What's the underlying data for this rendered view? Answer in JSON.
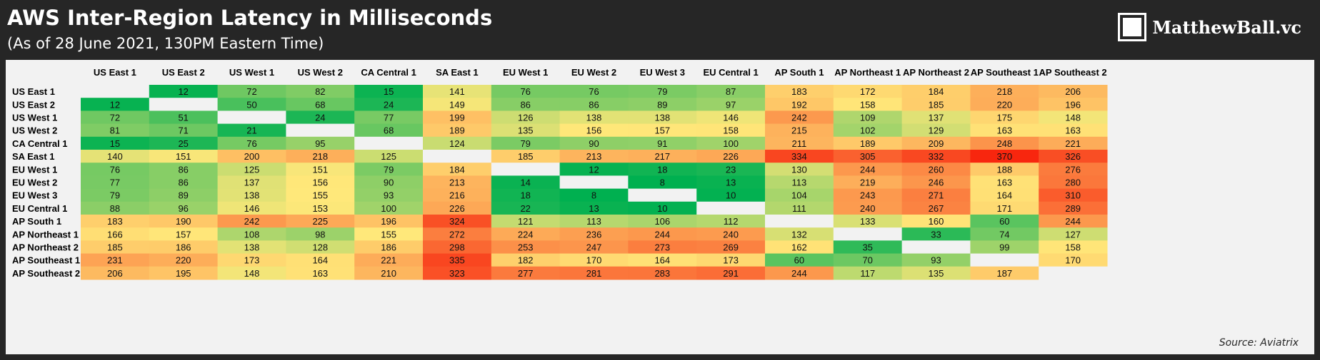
{
  "header": {
    "title": "AWS Inter-Region Latency in Milliseconds",
    "subtitle": "(As of 28 June 2021, 130PM Eastern Time)",
    "brand": "MatthewBall.vc",
    "brand_logo_icon": "square-frame-logo"
  },
  "footer": {
    "source": "Source: Aviatrix"
  },
  "chart_data": {
    "type": "heatmap",
    "title": "AWS Inter-Region Latency in Milliseconds",
    "columns": [
      "US East 1",
      "US East 2",
      "US West 1",
      "US West 2",
      "CA Central 1",
      "SA East 1",
      "EU West 1",
      "EU West 2",
      "EU West 3",
      "EU Central 1",
      "AP South 1",
      "AP Northeast 1",
      "AP Northeast 2",
      "AP Southeast 1",
      "AP Southeast 2"
    ],
    "rows": [
      "US East 1",
      "US East 2",
      "US West 1",
      "US West 2",
      "CA Central 1",
      "SA East 1",
      "EU West 1",
      "EU West 2",
      "EU West 3",
      "EU Central 1",
      "AP South 1",
      "AP Northeast 1",
      "AP Northeast 2",
      "AP Southeast 1",
      "AP Southeast 2"
    ],
    "values": [
      [
        null,
        12,
        72,
        82,
        15,
        141,
        76,
        76,
        79,
        87,
        183,
        172,
        184,
        218,
        206
      ],
      [
        12,
        null,
        50,
        68,
        24,
        149,
        86,
        86,
        89,
        97,
        192,
        158,
        185,
        220,
        196
      ],
      [
        72,
        51,
        null,
        24,
        77,
        199,
        126,
        138,
        138,
        146,
        242,
        109,
        137,
        175,
        148
      ],
      [
        81,
        71,
        21,
        null,
        68,
        189,
        135,
        156,
        157,
        158,
        215,
        102,
        129,
        163,
        163
      ],
      [
        15,
        25,
        76,
        95,
        null,
        124,
        79,
        90,
        91,
        100,
        211,
        189,
        209,
        248,
        221
      ],
      [
        140,
        151,
        200,
        218,
        125,
        null,
        185,
        213,
        217,
        226,
        334,
        305,
        332,
        370,
        326
      ],
      [
        76,
        86,
        125,
        151,
        79,
        184,
        null,
        12,
        18,
        23,
        130,
        244,
        260,
        188,
        276
      ],
      [
        77,
        86,
        137,
        156,
        90,
        213,
        14,
        null,
        8,
        13,
        113,
        219,
        246,
        163,
        280
      ],
      [
        79,
        89,
        138,
        155,
        93,
        216,
        18,
        8,
        null,
        10,
        104,
        243,
        271,
        164,
        310
      ],
      [
        88,
        96,
        146,
        153,
        100,
        226,
        22,
        13,
        10,
        null,
        111,
        240,
        267,
        171,
        289
      ],
      [
        183,
        190,
        242,
        225,
        196,
        324,
        121,
        113,
        106,
        112,
        null,
        133,
        160,
        60,
        244
      ],
      [
        166,
        157,
        108,
        98,
        155,
        272,
        224,
        236,
        244,
        240,
        132,
        null,
        33,
        74,
        127
      ],
      [
        185,
        186,
        138,
        128,
        186,
        298,
        253,
        247,
        273,
        269,
        162,
        35,
        null,
        99,
        158
      ],
      [
        231,
        220,
        173,
        164,
        221,
        335,
        182,
        170,
        164,
        173,
        60,
        70,
        93,
        null,
        170
      ],
      [
        206,
        195,
        148,
        163,
        210,
        323,
        277,
        281,
        283,
        291,
        244,
        117,
        135,
        187,
        null
      ]
    ],
    "color_scale": {
      "low": "#00b050",
      "mid": "#ffe87a",
      "high": "#f8260e"
    }
  }
}
